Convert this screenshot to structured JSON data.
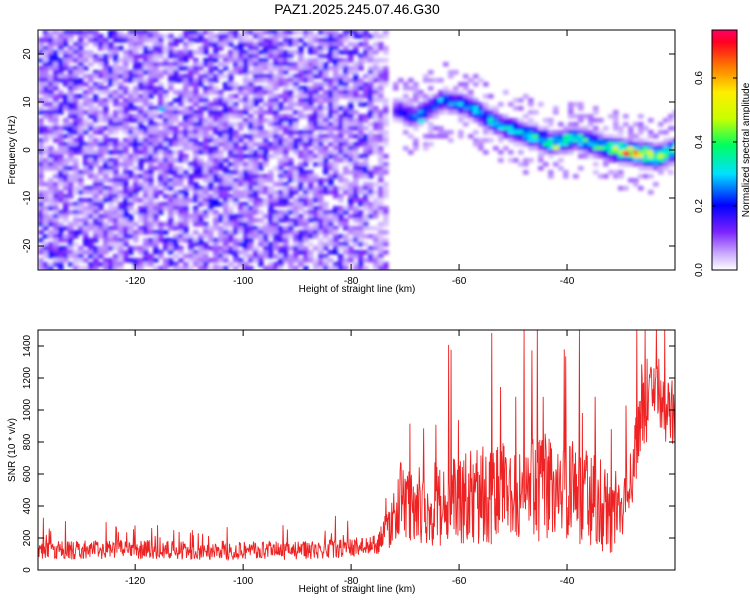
{
  "title": "PAZ1.2025.245.07.46.G30",
  "chart_data": [
    {
      "type": "heatmap",
      "xlabel": "Height of straight line (km)",
      "ylabel": "Frequency (Hz)",
      "xlim": [
        -138,
        -20
      ],
      "ylim": [
        -25,
        25
      ],
      "xticks": [
        -120,
        -100,
        -80,
        -60,
        -40
      ],
      "yticks": [
        -20,
        -10,
        0,
        10,
        20
      ],
      "colorbar": {
        "label": "Normalized spectral amplitude",
        "range": [
          0,
          0.75
        ],
        "ticks": [
          0.0,
          0.2,
          0.4,
          0.6
        ]
      },
      "features": {
        "noise_region_x": [
          -138,
          -73
        ],
        "noise_amplitude_range": [
          0.05,
          0.2
        ],
        "signal_track": [
          {
            "x": -72,
            "freq": 8.5,
            "amp": 0.22
          },
          {
            "x": -68,
            "freq": 7.0,
            "amp": 0.25
          },
          {
            "x": -63,
            "freq": 10.5,
            "amp": 0.28
          },
          {
            "x": -58,
            "freq": 9.0,
            "amp": 0.3
          },
          {
            "x": -53,
            "freq": 5.5,
            "amp": 0.33
          },
          {
            "x": -48,
            "freq": 3.5,
            "amp": 0.36
          },
          {
            "x": -43,
            "freq": 1.5,
            "amp": 0.4
          },
          {
            "x": -38,
            "freq": 2.5,
            "amp": 0.38
          },
          {
            "x": -33,
            "freq": 0.5,
            "amp": 0.45
          },
          {
            "x": -28,
            "freq": -0.5,
            "amp": 0.62
          },
          {
            "x": -23,
            "freq": -1.5,
            "amp": 0.55
          },
          {
            "x": -20,
            "freq": 0.0,
            "amp": 0.5
          }
        ],
        "hotspots": [
          {
            "x": -115,
            "freq": 8.5,
            "amp": 0.28
          },
          {
            "x": -67,
            "freq": 6.0,
            "amp": 0.32
          },
          {
            "x": -42,
            "freq": 0.5,
            "amp": 0.48
          },
          {
            "x": -29,
            "freq": -0.8,
            "amp": 0.7
          }
        ]
      }
    },
    {
      "type": "line",
      "xlabel": "Height of straight line (km)",
      "ylabel": "SNR (10 * v/v)",
      "xlim": [
        -138,
        -20
      ],
      "ylim": [
        0,
        1500
      ],
      "xticks": [
        -120,
        -100,
        -80,
        -60,
        -40
      ],
      "yticks": [
        0,
        200,
        400,
        600,
        800,
        1000,
        1200,
        1400
      ],
      "color": "#ee2222",
      "series": [
        {
          "x": [
            -138,
            -130,
            -120,
            -110,
            -100,
            -90,
            -80,
            -75,
            -73,
            -71,
            -68,
            -65,
            -60,
            -55,
            -50,
            -45,
            -40,
            -35,
            -32,
            -30,
            -28,
            -26,
            -24,
            -22,
            -20
          ],
          "values": [
            120,
            125,
            130,
            120,
            125,
            120,
            140,
            160,
            280,
            420,
            380,
            400,
            430,
            480,
            470,
            520,
            500,
            430,
            400,
            350,
            600,
            1000,
            1150,
            1050,
            900
          ],
          "noise_amplitude": [
            60,
            60,
            60,
            60,
            60,
            60,
            60,
            60,
            150,
            220,
            220,
            250,
            280,
            320,
            320,
            340,
            330,
            300,
            300,
            250,
            200,
            260,
            260,
            260,
            250
          ]
        }
      ]
    }
  ]
}
